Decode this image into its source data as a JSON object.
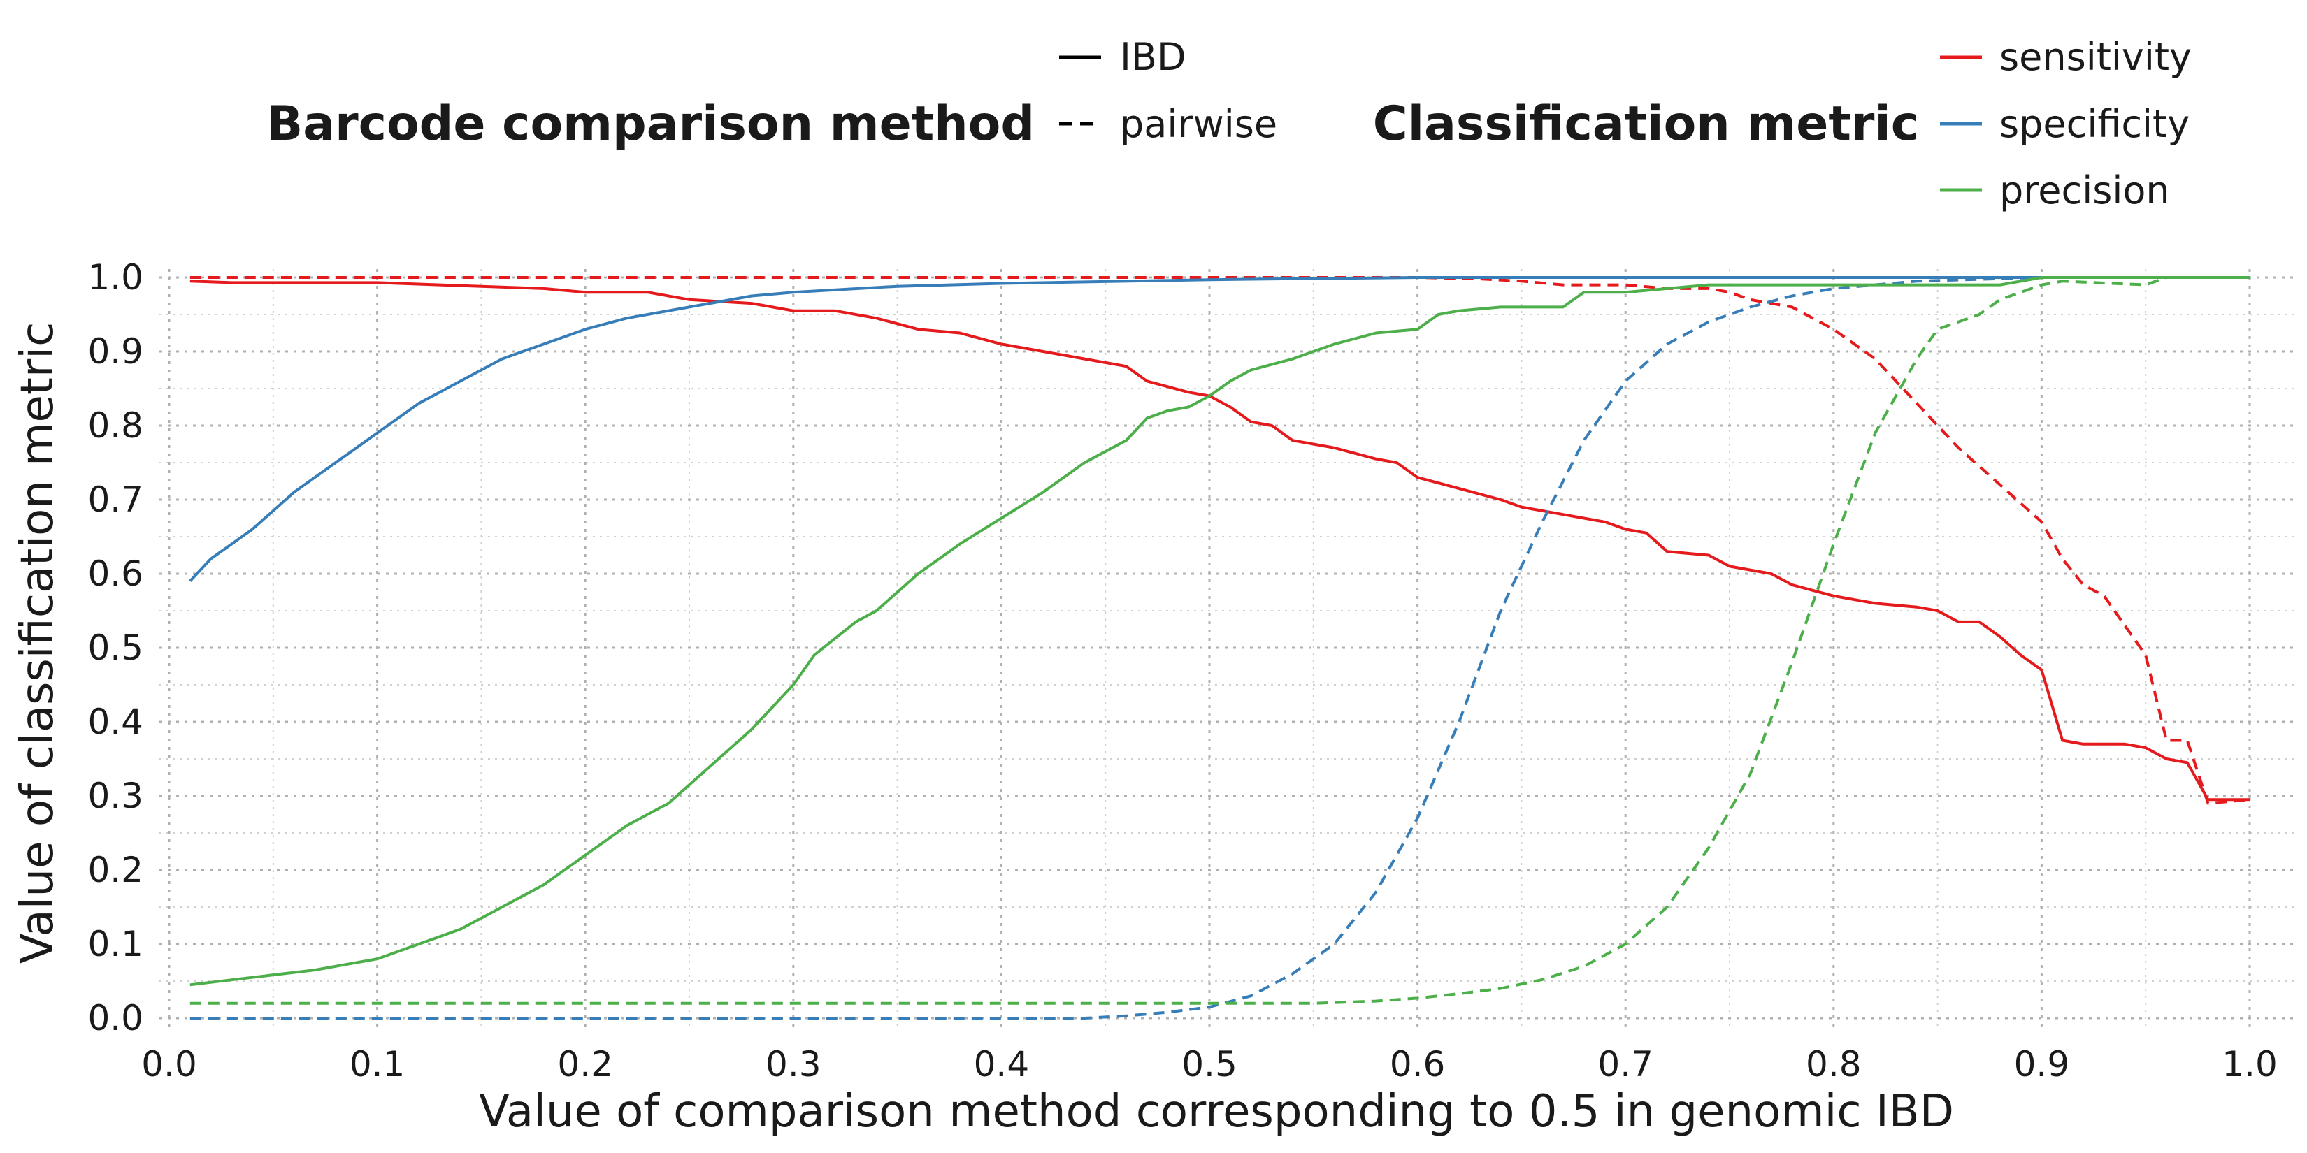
{
  "chart_data": {
    "type": "line",
    "xlabel": "Value of comparison method corresponding to 0.5 in genomic IBD",
    "ylabel": "Value of classification metric",
    "xlim": [
      0.0,
      1.0
    ],
    "ylim": [
      0.0,
      1.0
    ],
    "x_ticks": [
      "0.0",
      "0.1",
      "0.2",
      "0.3",
      "0.4",
      "0.5",
      "0.6",
      "0.7",
      "0.8",
      "0.9",
      "1.0"
    ],
    "y_ticks": [
      "0.0",
      "0.1",
      "0.2",
      "0.3",
      "0.4",
      "0.5",
      "0.6",
      "0.7",
      "0.8",
      "0.9",
      "1.0"
    ],
    "grid": true,
    "legends": [
      {
        "title": "Barcode comparison method",
        "placement": "top-center",
        "entries": [
          {
            "label": "IBD",
            "style": "solid"
          },
          {
            "label": "pairwise",
            "style": "dashed"
          }
        ]
      },
      {
        "title": "Classification metric",
        "placement": "top-right",
        "entries": [
          {
            "label": "sensitivity",
            "color": "#e41a1c"
          },
          {
            "label": "specificity",
            "color": "#377eb8"
          },
          {
            "label": "precision",
            "color": "#4daf4a"
          }
        ]
      }
    ],
    "series": [
      {
        "metric": "sensitivity",
        "method": "IBD",
        "color": "#e41a1c",
        "style": "solid",
        "points": [
          [
            0.01,
            0.995
          ],
          [
            0.03,
            0.993
          ],
          [
            0.1,
            0.993
          ],
          [
            0.13,
            0.99
          ],
          [
            0.18,
            0.985
          ],
          [
            0.2,
            0.98
          ],
          [
            0.23,
            0.98
          ],
          [
            0.25,
            0.97
          ],
          [
            0.28,
            0.965
          ],
          [
            0.3,
            0.955
          ],
          [
            0.32,
            0.955
          ],
          [
            0.34,
            0.945
          ],
          [
            0.36,
            0.93
          ],
          [
            0.38,
            0.925
          ],
          [
            0.4,
            0.91
          ],
          [
            0.42,
            0.9
          ],
          [
            0.44,
            0.89
          ],
          [
            0.46,
            0.88
          ],
          [
            0.47,
            0.86
          ],
          [
            0.49,
            0.845
          ],
          [
            0.5,
            0.84
          ],
          [
            0.51,
            0.825
          ],
          [
            0.52,
            0.805
          ],
          [
            0.53,
            0.8
          ],
          [
            0.54,
            0.78
          ],
          [
            0.56,
            0.77
          ],
          [
            0.58,
            0.755
          ],
          [
            0.59,
            0.75
          ],
          [
            0.6,
            0.73
          ],
          [
            0.62,
            0.715
          ],
          [
            0.64,
            0.7
          ],
          [
            0.65,
            0.69
          ],
          [
            0.67,
            0.68
          ],
          [
            0.69,
            0.67
          ],
          [
            0.7,
            0.66
          ],
          [
            0.71,
            0.655
          ],
          [
            0.72,
            0.63
          ],
          [
            0.74,
            0.625
          ],
          [
            0.75,
            0.61
          ],
          [
            0.77,
            0.6
          ],
          [
            0.78,
            0.585
          ],
          [
            0.8,
            0.57
          ],
          [
            0.82,
            0.56
          ],
          [
            0.84,
            0.555
          ],
          [
            0.85,
            0.55
          ],
          [
            0.86,
            0.535
          ],
          [
            0.87,
            0.535
          ],
          [
            0.88,
            0.515
          ],
          [
            0.89,
            0.49
          ],
          [
            0.9,
            0.47
          ],
          [
            0.91,
            0.375
          ],
          [
            0.92,
            0.37
          ],
          [
            0.94,
            0.37
          ],
          [
            0.95,
            0.365
          ],
          [
            0.96,
            0.35
          ],
          [
            0.97,
            0.345
          ],
          [
            0.98,
            0.295
          ],
          [
            0.99,
            0.295
          ],
          [
            1.0,
            0.295
          ]
        ]
      },
      {
        "metric": "sensitivity",
        "method": "pairwise",
        "color": "#e41a1c",
        "style": "dashed",
        "points": [
          [
            0.01,
            1.0
          ],
          [
            0.6,
            1.0
          ],
          [
            0.63,
            0.998
          ],
          [
            0.65,
            0.995
          ],
          [
            0.67,
            0.99
          ],
          [
            0.7,
            0.99
          ],
          [
            0.72,
            0.985
          ],
          [
            0.74,
            0.985
          ],
          [
            0.75,
            0.98
          ],
          [
            0.76,
            0.97
          ],
          [
            0.78,
            0.96
          ],
          [
            0.8,
            0.93
          ],
          [
            0.82,
            0.89
          ],
          [
            0.84,
            0.83
          ],
          [
            0.86,
            0.77
          ],
          [
            0.88,
            0.72
          ],
          [
            0.9,
            0.67
          ],
          [
            0.91,
            0.62
          ],
          [
            0.92,
            0.585
          ],
          [
            0.93,
            0.57
          ],
          [
            0.95,
            0.49
          ],
          [
            0.96,
            0.375
          ],
          [
            0.97,
            0.375
          ],
          [
            0.98,
            0.29
          ],
          [
            1.0,
            0.295
          ]
        ]
      },
      {
        "metric": "specificity",
        "method": "IBD",
        "color": "#377eb8",
        "style": "solid",
        "points": [
          [
            0.01,
            0.59
          ],
          [
            0.02,
            0.62
          ],
          [
            0.04,
            0.66
          ],
          [
            0.06,
            0.71
          ],
          [
            0.08,
            0.75
          ],
          [
            0.1,
            0.79
          ],
          [
            0.12,
            0.83
          ],
          [
            0.14,
            0.86
          ],
          [
            0.16,
            0.89
          ],
          [
            0.18,
            0.91
          ],
          [
            0.2,
            0.93
          ],
          [
            0.22,
            0.945
          ],
          [
            0.25,
            0.96
          ],
          [
            0.28,
            0.975
          ],
          [
            0.3,
            0.98
          ],
          [
            0.35,
            0.988
          ],
          [
            0.4,
            0.992
          ],
          [
            0.5,
            0.997
          ],
          [
            0.6,
            1.0
          ],
          [
            1.0,
            1.0
          ]
        ]
      },
      {
        "metric": "specificity",
        "method": "pairwise",
        "color": "#377eb8",
        "style": "dashed",
        "points": [
          [
            0.01,
            0.0
          ],
          [
            0.44,
            0.0
          ],
          [
            0.46,
            0.003
          ],
          [
            0.48,
            0.008
          ],
          [
            0.5,
            0.015
          ],
          [
            0.52,
            0.03
          ],
          [
            0.54,
            0.06
          ],
          [
            0.56,
            0.1
          ],
          [
            0.58,
            0.17
          ],
          [
            0.6,
            0.27
          ],
          [
            0.62,
            0.4
          ],
          [
            0.64,
            0.55
          ],
          [
            0.66,
            0.67
          ],
          [
            0.68,
            0.78
          ],
          [
            0.7,
            0.86
          ],
          [
            0.72,
            0.91
          ],
          [
            0.74,
            0.94
          ],
          [
            0.76,
            0.96
          ],
          [
            0.78,
            0.975
          ],
          [
            0.8,
            0.985
          ],
          [
            0.84,
            0.995
          ],
          [
            0.9,
            1.0
          ],
          [
            1.0,
            1.0
          ]
        ]
      },
      {
        "metric": "precision",
        "method": "IBD",
        "color": "#4daf4a",
        "style": "solid",
        "points": [
          [
            0.01,
            0.045
          ],
          [
            0.04,
            0.055
          ],
          [
            0.07,
            0.065
          ],
          [
            0.09,
            0.075
          ],
          [
            0.1,
            0.08
          ],
          [
            0.12,
            0.1
          ],
          [
            0.14,
            0.12
          ],
          [
            0.16,
            0.15
          ],
          [
            0.18,
            0.18
          ],
          [
            0.2,
            0.22
          ],
          [
            0.22,
            0.26
          ],
          [
            0.24,
            0.29
          ],
          [
            0.26,
            0.34
          ],
          [
            0.28,
            0.39
          ],
          [
            0.3,
            0.45
          ],
          [
            0.31,
            0.49
          ],
          [
            0.33,
            0.535
          ],
          [
            0.34,
            0.55
          ],
          [
            0.36,
            0.6
          ],
          [
            0.38,
            0.64
          ],
          [
            0.4,
            0.675
          ],
          [
            0.42,
            0.71
          ],
          [
            0.44,
            0.75
          ],
          [
            0.46,
            0.78
          ],
          [
            0.47,
            0.81
          ],
          [
            0.48,
            0.82
          ],
          [
            0.49,
            0.825
          ],
          [
            0.5,
            0.84
          ],
          [
            0.51,
            0.86
          ],
          [
            0.52,
            0.875
          ],
          [
            0.54,
            0.89
          ],
          [
            0.55,
            0.9
          ],
          [
            0.56,
            0.91
          ],
          [
            0.58,
            0.925
          ],
          [
            0.6,
            0.93
          ],
          [
            0.61,
            0.95
          ],
          [
            0.62,
            0.955
          ],
          [
            0.64,
            0.96
          ],
          [
            0.67,
            0.96
          ],
          [
            0.68,
            0.98
          ],
          [
            0.7,
            0.98
          ],
          [
            0.72,
            0.985
          ],
          [
            0.74,
            0.99
          ],
          [
            0.88,
            0.99
          ],
          [
            0.9,
            1.0
          ],
          [
            1.0,
            1.0
          ]
        ]
      },
      {
        "metric": "precision",
        "method": "pairwise",
        "color": "#4daf4a",
        "style": "dashed",
        "points": [
          [
            0.01,
            0.02
          ],
          [
            0.5,
            0.02
          ],
          [
            0.55,
            0.02
          ],
          [
            0.58,
            0.023
          ],
          [
            0.6,
            0.027
          ],
          [
            0.62,
            0.033
          ],
          [
            0.64,
            0.04
          ],
          [
            0.66,
            0.052
          ],
          [
            0.68,
            0.07
          ],
          [
            0.7,
            0.1
          ],
          [
            0.72,
            0.15
          ],
          [
            0.74,
            0.23
          ],
          [
            0.76,
            0.33
          ],
          [
            0.78,
            0.48
          ],
          [
            0.8,
            0.64
          ],
          [
            0.82,
            0.79
          ],
          [
            0.84,
            0.89
          ],
          [
            0.85,
            0.93
          ],
          [
            0.87,
            0.95
          ],
          [
            0.88,
            0.97
          ],
          [
            0.89,
            0.98
          ],
          [
            0.9,
            0.99
          ],
          [
            0.91,
            0.995
          ],
          [
            0.95,
            0.99
          ],
          [
            0.96,
            1.0
          ],
          [
            1.0,
            1.0
          ]
        ]
      }
    ]
  }
}
